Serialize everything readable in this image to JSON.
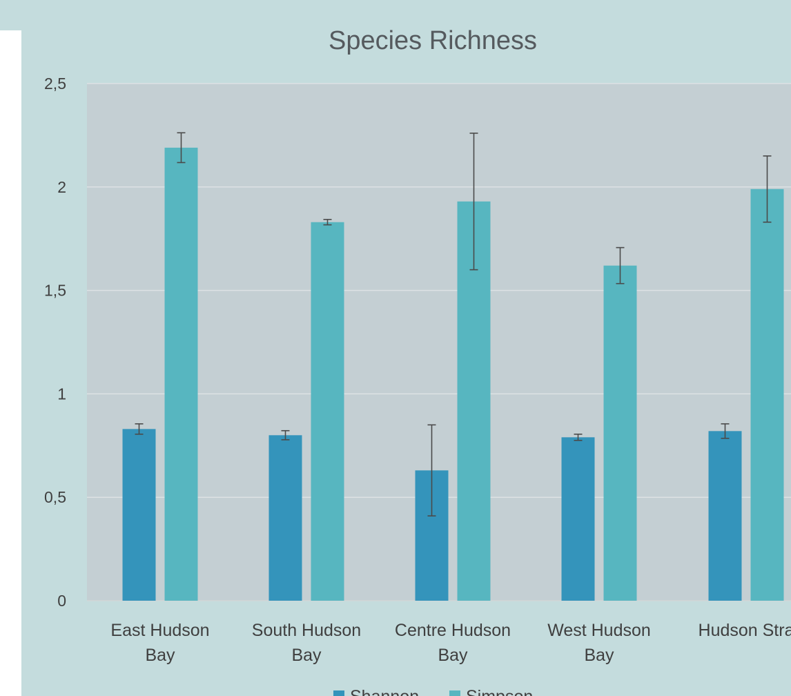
{
  "chart_data": {
    "type": "bar",
    "title": "Species Richness",
    "xlabel": "",
    "ylabel": "",
    "ylim": [
      0,
      2.5
    ],
    "yticks": [
      "0",
      "0,5",
      "1",
      "1,5",
      "2",
      "2,5"
    ],
    "categories": [
      [
        "East Hudson",
        "Bay"
      ],
      [
        "South Hudson",
        "Bay"
      ],
      [
        "Centre Hudson",
        "Bay"
      ],
      [
        "West Hudson",
        "Bay"
      ],
      [
        "Hudson Stra"
      ]
    ],
    "series": [
      {
        "name": "Shannon",
        "color": "#3494bb",
        "values": [
          0.83,
          0.8,
          0.63,
          0.79,
          0.82
        ],
        "errors": [
          0.025,
          0.022,
          0.22,
          0.015,
          0.035
        ]
      },
      {
        "name": "Simpson",
        "color": "#57b6c0",
        "values": [
          2.19,
          1.83,
          1.93,
          1.62,
          1.99
        ],
        "errors": [
          0.072,
          0.013,
          0.33,
          0.087,
          0.16
        ]
      }
    ],
    "grid": true,
    "legend": "bottom",
    "plot_background": "#c4cfd3",
    "page_background": "#c4dcdd"
  }
}
